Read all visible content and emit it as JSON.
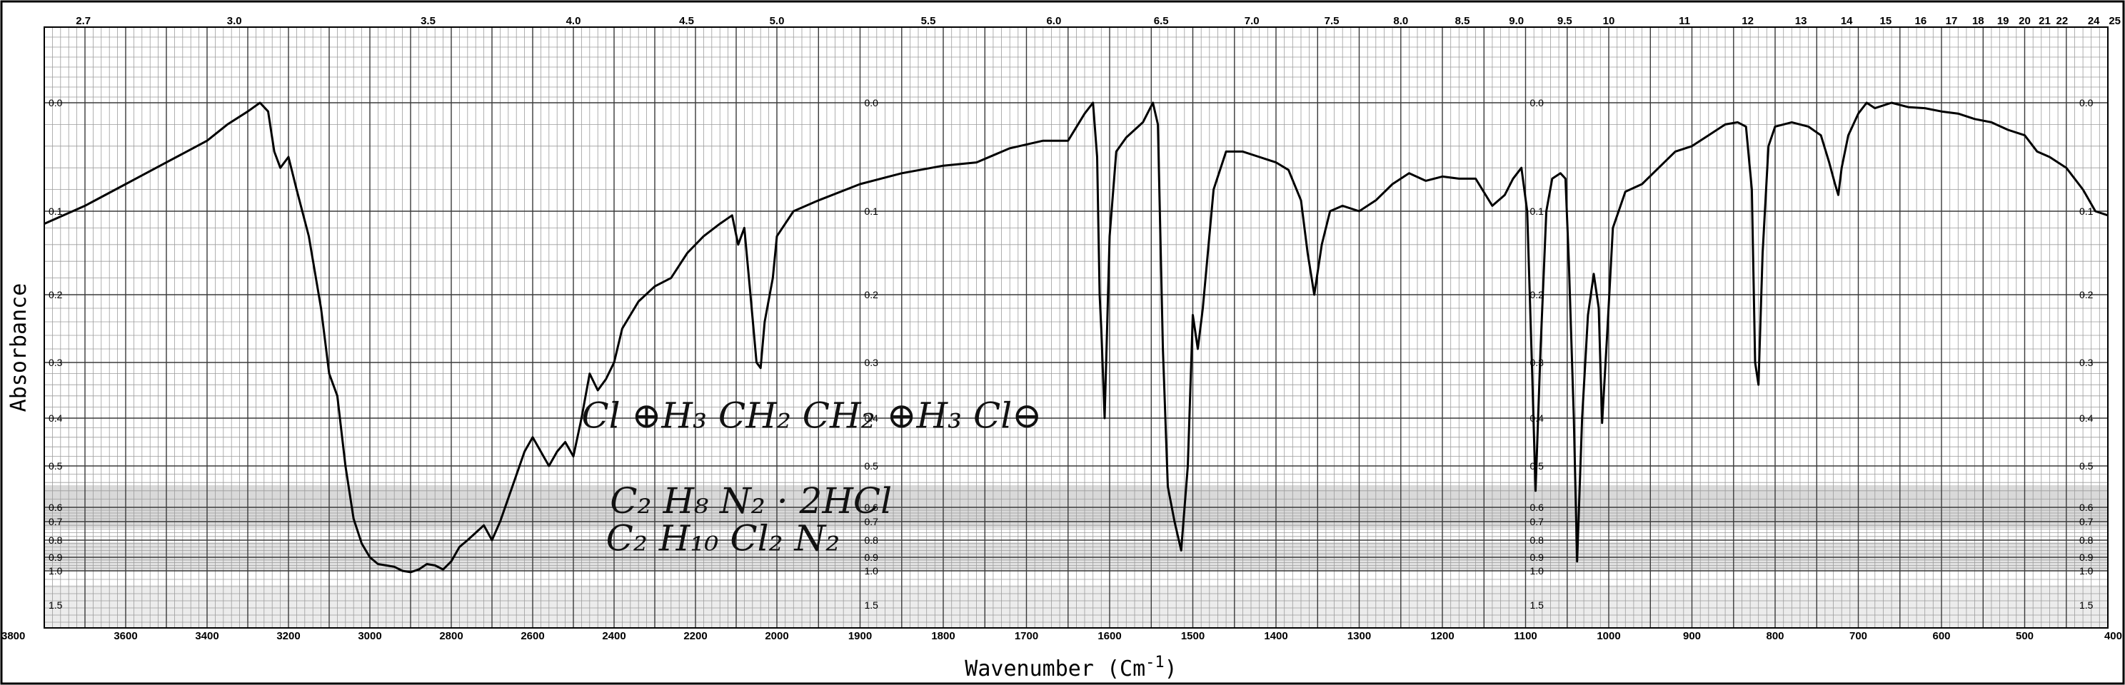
{
  "chart_data": {
    "type": "line",
    "title": "",
    "xlabel": "Wavenumber (Cm",
    "xlabel_superscript": "-1",
    "xlabel_close": ")",
    "ylabel": "Absorbance",
    "xlim": [
      3800,
      400
    ],
    "x_axis_reversed": true,
    "grid": true,
    "wavenumber_ticks": [
      {
        "value": 3800,
        "label": "3800"
      },
      {
        "value": 3600,
        "label": "3600"
      },
      {
        "value": 3400,
        "label": "3400"
      },
      {
        "value": 3200,
        "label": "3200"
      },
      {
        "value": 3000,
        "label": "3000"
      },
      {
        "value": 2800,
        "label": "2800"
      },
      {
        "value": 2600,
        "label": "2600"
      },
      {
        "value": 2400,
        "label": "2400"
      },
      {
        "value": 2200,
        "label": "2200"
      },
      {
        "value": 2000,
        "label": "2000"
      },
      {
        "value": 1900,
        "label": "1900"
      },
      {
        "value": 1800,
        "label": "1800"
      },
      {
        "value": 1700,
        "label": "1700"
      },
      {
        "value": 1600,
        "label": "1600"
      },
      {
        "value": 1500,
        "label": "1500"
      },
      {
        "value": 1400,
        "label": "1400"
      },
      {
        "value": 1300,
        "label": "1300"
      },
      {
        "value": 1200,
        "label": "1200"
      },
      {
        "value": 1100,
        "label": "1100"
      },
      {
        "value": 1000,
        "label": "1000"
      },
      {
        "value": 900,
        "label": "900"
      },
      {
        "value": 800,
        "label": "800"
      },
      {
        "value": 700,
        "label": "700"
      },
      {
        "value": 600,
        "label": "600"
      },
      {
        "value": 500,
        "label": "500"
      },
      {
        "value": 400,
        "label": "400"
      }
    ],
    "micron_ticks": [
      {
        "wavenumber": 3704,
        "label": "2.7"
      },
      {
        "wavenumber": 3333,
        "label": "3.0"
      },
      {
        "wavenumber": 2857,
        "label": "3.5"
      },
      {
        "wavenumber": 2500,
        "label": "4.0"
      },
      {
        "wavenumber": 2222,
        "label": "4.5"
      },
      {
        "wavenumber": 2000,
        "label": "5.0"
      },
      {
        "wavenumber": 1818,
        "label": "5.5"
      },
      {
        "wavenumber": 1667,
        "label": "6.0"
      },
      {
        "wavenumber": 1538,
        "label": "6.5"
      },
      {
        "wavenumber": 1429,
        "label": "7.0"
      },
      {
        "wavenumber": 1333,
        "label": "7.5"
      },
      {
        "wavenumber": 1250,
        "label": "8.0"
      },
      {
        "wavenumber": 1176,
        "label": "8.5"
      },
      {
        "wavenumber": 1111,
        "label": "9.0"
      },
      {
        "wavenumber": 1053,
        "label": "9.5"
      },
      {
        "wavenumber": 1000,
        "label": "10"
      },
      {
        "wavenumber": 909,
        "label": "11"
      },
      {
        "wavenumber": 833,
        "label": "12"
      },
      {
        "wavenumber": 769,
        "label": "13"
      },
      {
        "wavenumber": 714,
        "label": "14"
      },
      {
        "wavenumber": 667,
        "label": "15"
      },
      {
        "wavenumber": 625,
        "label": "16"
      },
      {
        "wavenumber": 588,
        "label": "17"
      },
      {
        "wavenumber": 556,
        "label": "18"
      },
      {
        "wavenumber": 526,
        "label": "19"
      },
      {
        "wavenumber": 500,
        "label": "20"
      },
      {
        "wavenumber": 476,
        "label": "21"
      },
      {
        "wavenumber": 455,
        "label": "22"
      },
      {
        "wavenumber": 417,
        "label": "24"
      },
      {
        "wavenumber": 400,
        "label": "25"
      }
    ],
    "absorbance_scale": [
      {
        "value": 0.0,
        "label": "0.0"
      },
      {
        "value": 0.1,
        "label": "0.1"
      },
      {
        "value": 0.2,
        "label": "0.2"
      },
      {
        "value": 0.3,
        "label": "0.3"
      },
      {
        "value": 0.4,
        "label": "0.4"
      },
      {
        "value": 0.5,
        "label": "0.5"
      },
      {
        "value": 0.6,
        "label": "0.6"
      },
      {
        "value": 0.7,
        "label": "0.7"
      },
      {
        "value": 0.8,
        "label": "0.8"
      },
      {
        "value": 0.9,
        "label": "0.9"
      },
      {
        "value": 1.0,
        "label": "1.0"
      },
      {
        "value": 1.5,
        "label": "1.5"
      }
    ],
    "absorbance_label_wavenumbers": [
      3800,
      1900,
      1100,
      400
    ],
    "series": [
      {
        "color": "#000000",
        "points": [
          [
            3800,
            0.115
          ],
          [
            3700,
            0.095
          ],
          [
            3600,
            0.075
          ],
          [
            3500,
            0.055
          ],
          [
            3400,
            0.035
          ],
          [
            3350,
            0.02
          ],
          [
            3300,
            0.008
          ],
          [
            3270,
            0.0
          ],
          [
            3250,
            0.008
          ],
          [
            3235,
            0.045
          ],
          [
            3220,
            0.06
          ],
          [
            3200,
            0.05
          ],
          [
            3180,
            0.08
          ],
          [
            3150,
            0.13
          ],
          [
            3120,
            0.22
          ],
          [
            3100,
            0.32
          ],
          [
            3080,
            0.36
          ],
          [
            3060,
            0.5
          ],
          [
            3040,
            0.68
          ],
          [
            3020,
            0.82
          ],
          [
            3000,
            0.9
          ],
          [
            2980,
            0.95
          ],
          [
            2960,
            0.96
          ],
          [
            2940,
            0.97
          ],
          [
            2920,
            1.0
          ],
          [
            2900,
            1.02
          ],
          [
            2880,
            0.99
          ],
          [
            2860,
            0.95
          ],
          [
            2840,
            0.96
          ],
          [
            2820,
            0.99
          ],
          [
            2800,
            0.93
          ],
          [
            2780,
            0.84
          ],
          [
            2760,
            0.8
          ],
          [
            2740,
            0.76
          ],
          [
            2720,
            0.72
          ],
          [
            2700,
            0.8
          ],
          [
            2680,
            0.7
          ],
          [
            2650,
            0.55
          ],
          [
            2620,
            0.47
          ],
          [
            2600,
            0.44
          ],
          [
            2580,
            0.47
          ],
          [
            2560,
            0.5
          ],
          [
            2540,
            0.47
          ],
          [
            2520,
            0.45
          ],
          [
            2500,
            0.48
          ],
          [
            2480,
            0.4
          ],
          [
            2460,
            0.32
          ],
          [
            2440,
            0.35
          ],
          [
            2420,
            0.33
          ],
          [
            2400,
            0.3
          ],
          [
            2380,
            0.25
          ],
          [
            2360,
            0.23
          ],
          [
            2340,
            0.21
          ],
          [
            2300,
            0.19
          ],
          [
            2260,
            0.18
          ],
          [
            2220,
            0.15
          ],
          [
            2180,
            0.13
          ],
          [
            2140,
            0.115
          ],
          [
            2110,
            0.105
          ],
          [
            2095,
            0.14
          ],
          [
            2080,
            0.12
          ],
          [
            2065,
            0.2
          ],
          [
            2050,
            0.3
          ],
          [
            2040,
            0.31
          ],
          [
            2030,
            0.24
          ],
          [
            2010,
            0.18
          ],
          [
            2000,
            0.13
          ],
          [
            1980,
            0.1
          ],
          [
            1950,
            0.09
          ],
          [
            1900,
            0.075
          ],
          [
            1850,
            0.065
          ],
          [
            1800,
            0.058
          ],
          [
            1760,
            0.055
          ],
          [
            1720,
            0.042
          ],
          [
            1680,
            0.035
          ],
          [
            1650,
            0.035
          ],
          [
            1630,
            0.01
          ],
          [
            1620,
            0.0
          ],
          [
            1615,
            0.05
          ],
          [
            1612,
            0.2
          ],
          [
            1610,
            0.25
          ],
          [
            1606,
            0.4
          ],
          [
            1600,
            0.13
          ],
          [
            1592,
            0.045
          ],
          [
            1580,
            0.032
          ],
          [
            1560,
            0.018
          ],
          [
            1548,
            0.0
          ],
          [
            1542,
            0.02
          ],
          [
            1536,
            0.28
          ],
          [
            1530,
            0.55
          ],
          [
            1522,
            0.7
          ],
          [
            1514,
            0.86
          ],
          [
            1506,
            0.5
          ],
          [
            1500,
            0.23
          ],
          [
            1494,
            0.28
          ],
          [
            1488,
            0.22
          ],
          [
            1475,
            0.08
          ],
          [
            1460,
            0.045
          ],
          [
            1440,
            0.045
          ],
          [
            1420,
            0.05
          ],
          [
            1400,
            0.055
          ],
          [
            1385,
            0.062
          ],
          [
            1370,
            0.09
          ],
          [
            1362,
            0.15
          ],
          [
            1354,
            0.2
          ],
          [
            1345,
            0.14
          ],
          [
            1335,
            0.1
          ],
          [
            1320,
            0.095
          ],
          [
            1300,
            0.1
          ],
          [
            1280,
            0.09
          ],
          [
            1260,
            0.075
          ],
          [
            1240,
            0.065
          ],
          [
            1220,
            0.072
          ],
          [
            1200,
            0.068
          ],
          [
            1180,
            0.07
          ],
          [
            1160,
            0.07
          ],
          [
            1140,
            0.095
          ],
          [
            1125,
            0.085
          ],
          [
            1115,
            0.07
          ],
          [
            1105,
            0.06
          ],
          [
            1098,
            0.1
          ],
          [
            1092,
            0.32
          ],
          [
            1088,
            0.56
          ],
          [
            1082,
            0.28
          ],
          [
            1075,
            0.1
          ],
          [
            1068,
            0.07
          ],
          [
            1058,
            0.065
          ],
          [
            1052,
            0.07
          ],
          [
            1048,
            0.16
          ],
          [
            1042,
            0.4
          ],
          [
            1038,
            0.93
          ],
          [
            1032,
            0.4
          ],
          [
            1025,
            0.23
          ],
          [
            1018,
            0.175
          ],
          [
            1012,
            0.22
          ],
          [
            1008,
            0.41
          ],
          [
            1002,
            0.26
          ],
          [
            995,
            0.12
          ],
          [
            980,
            0.082
          ],
          [
            960,
            0.075
          ],
          [
            940,
            0.06
          ],
          [
            920,
            0.045
          ],
          [
            900,
            0.04
          ],
          [
            880,
            0.03
          ],
          [
            860,
            0.02
          ],
          [
            845,
            0.018
          ],
          [
            835,
            0.022
          ],
          [
            828,
            0.08
          ],
          [
            824,
            0.3
          ],
          [
            820,
            0.34
          ],
          [
            815,
            0.15
          ],
          [
            808,
            0.04
          ],
          [
            800,
            0.022
          ],
          [
            780,
            0.018
          ],
          [
            760,
            0.022
          ],
          [
            745,
            0.03
          ],
          [
            735,
            0.055
          ],
          [
            728,
            0.075
          ],
          [
            724,
            0.085
          ],
          [
            720,
            0.06
          ],
          [
            712,
            0.03
          ],
          [
            700,
            0.01
          ],
          [
            690,
            0.0
          ],
          [
            680,
            0.005
          ],
          [
            660,
            0.0
          ],
          [
            640,
            0.004
          ],
          [
            620,
            0.005
          ],
          [
            600,
            0.008
          ],
          [
            580,
            0.01
          ],
          [
            560,
            0.015
          ],
          [
            540,
            0.018
          ],
          [
            520,
            0.025
          ],
          [
            500,
            0.03
          ],
          [
            485,
            0.045
          ],
          [
            470,
            0.05
          ],
          [
            450,
            0.06
          ],
          [
            430,
            0.08
          ],
          [
            415,
            0.1
          ],
          [
            400,
            0.105
          ]
        ]
      }
    ],
    "annotations": [
      {
        "text": "Cl ⊕H₃ CH₂ CH₂ ⊕H₃ Cl⊖",
        "wavenumber": 2480,
        "absorbance": 0.42
      },
      {
        "text": "C₂ H₈ N₂ · 2HCl",
        "wavenumber": 2410,
        "absorbance": 0.64
      },
      {
        "text": "C₂ H₁₀ Cl₂ N₂",
        "wavenumber": 2420,
        "absorbance": 0.86
      }
    ]
  }
}
